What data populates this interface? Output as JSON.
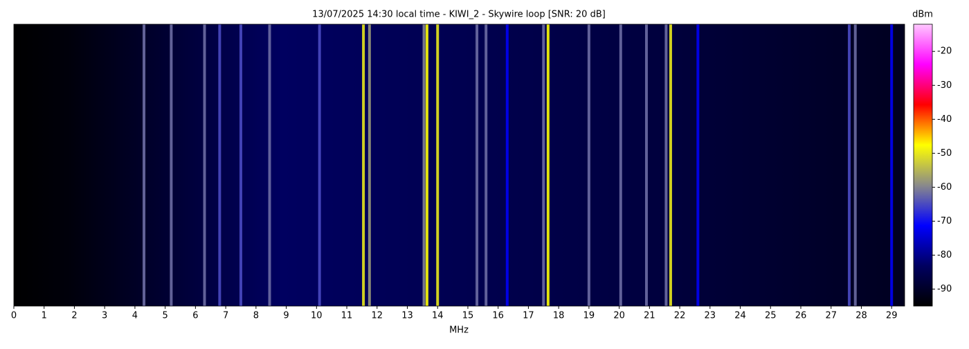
{
  "chart_data": {
    "type": "spectrogram",
    "title": "13/07/2025 14:30 local time - KIWI_2 - Skywire loop [SNR: 20 dB]",
    "x_label": "MHz",
    "colorbar_label": "dBm",
    "xlim": [
      0,
      29.43
    ],
    "xticks": [
      0,
      1,
      2,
      3,
      4,
      5,
      6,
      7,
      8,
      9,
      10,
      11,
      12,
      13,
      14,
      15,
      16,
      17,
      18,
      19,
      20,
      21,
      22,
      23,
      24,
      25,
      26,
      27,
      28,
      29
    ],
    "clim": [
      -95,
      -12
    ],
    "cticks": [
      -20,
      -30,
      -40,
      -50,
      -60,
      -70,
      -80,
      -90
    ],
    "colormap": [
      "#000000",
      "#000060",
      "#0000ff",
      "#8a8a8a",
      "#ffff00",
      "#ff0000",
      "#ff00ff",
      "#ffc8ff"
    ],
    "signals": {
      "x": [
        4.3,
        5.2,
        6.3,
        6.8,
        7.5,
        8.45,
        10.1,
        11.55,
        11.75,
        13.55,
        13.65,
        14.0,
        15.3,
        15.6,
        16.3,
        17.5,
        17.65,
        19.0,
        20.05,
        20.9,
        21.55,
        21.7,
        22.6,
        27.6,
        27.8,
        29.0
      ],
      "values": [
        -62,
        -62,
        -62,
        -65,
        -65,
        -62,
        -65,
        -50,
        -58,
        -60,
        -48,
        -50,
        -62,
        -62,
        -72,
        -62,
        -48,
        -62,
        -62,
        -62,
        -62,
        -50,
        -72,
        -65,
        -62,
        -72
      ]
    }
  }
}
